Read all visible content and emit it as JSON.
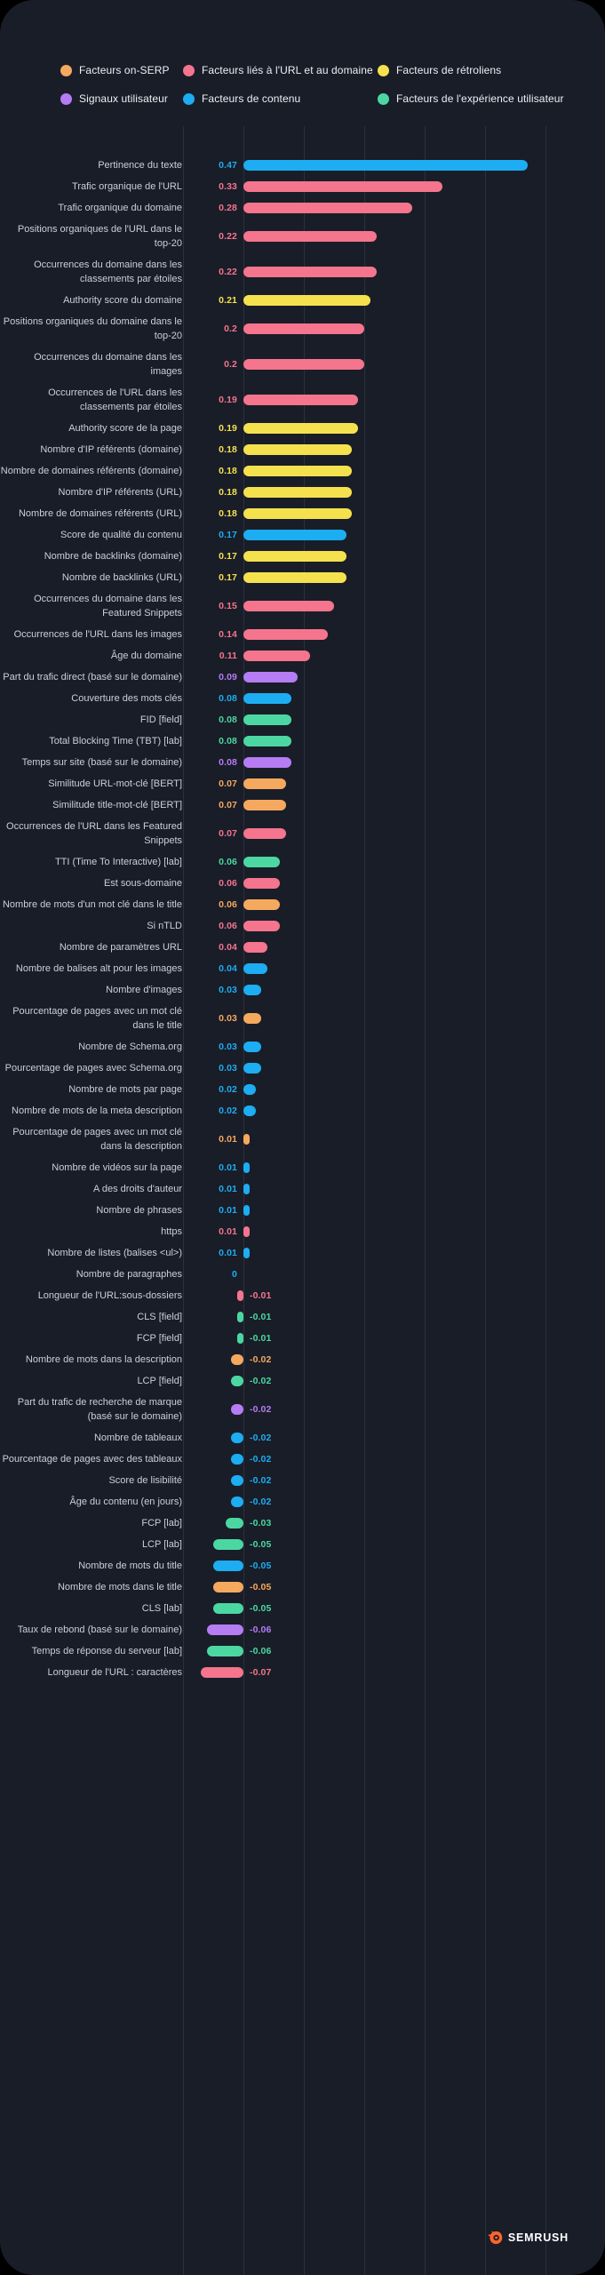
{
  "colors": {
    "serp": "#F5A95F",
    "url": "#F4758D",
    "backlinks": "#F5E14E",
    "user": "#B57CF4",
    "content": "#1CADF2",
    "ux": "#4CD7A2",
    "brand": "#FF642D",
    "background": "#191D28",
    "gridline": "#2B303E",
    "label_text": "#C9CFDC"
  },
  "legend": {
    "items": [
      {
        "key": "serp",
        "label": "Facteurs on-SERP"
      },
      {
        "key": "url",
        "label": "Facteurs liés à l'URL et au domaine"
      },
      {
        "key": "backlinks",
        "label": "Facteurs de rétroliens"
      },
      {
        "key": "user",
        "label": "Signaux utilisateur"
      },
      {
        "key": "content",
        "label": "Facteurs de contenu"
      },
      {
        "key": "ux",
        "label": "Facteurs de l'expérience utilisateur"
      }
    ]
  },
  "chart_data": {
    "type": "bar",
    "orientation": "horizontal",
    "xlim": [
      -0.1,
      0.5
    ],
    "gridlines": [
      -0.1,
      0,
      0.1,
      0.2,
      0.3,
      0.4,
      0.5
    ],
    "grid": true,
    "legend_position": "top",
    "rows": [
      {
        "label": "Pertinence du texte",
        "value": "0.47",
        "cat": "content"
      },
      {
        "label": "Trafic organique de l'URL",
        "value": "0.33",
        "cat": "url"
      },
      {
        "label": "Trafic organique du domaine",
        "value": "0.28",
        "cat": "url"
      },
      {
        "label": "Positions organiques de l'URL dans le top-20",
        "value": "0.22",
        "cat": "url"
      },
      {
        "label": "Occurrences du domaine dans les classements par étoiles",
        "value": "0.22",
        "cat": "url"
      },
      {
        "label": "Authority score du domaine",
        "value": "0.21",
        "cat": "backlinks"
      },
      {
        "label": "Positions organiques du domaine dans le top-20",
        "value": "0.2",
        "cat": "url"
      },
      {
        "label": "Occurrences du domaine dans les images",
        "value": "0.2",
        "cat": "url"
      },
      {
        "label": "Occurrences de l'URL dans les classements par étoiles",
        "value": "0.19",
        "cat": "url"
      },
      {
        "label": "Authority score de la page",
        "value": "0.19",
        "cat": "backlinks"
      },
      {
        "label": "Nombre d'IP référents (domaine)",
        "value": "0.18",
        "cat": "backlinks"
      },
      {
        "label": "Nombre de domaines référents (domaine)",
        "value": "0.18",
        "cat": "backlinks"
      },
      {
        "label": "Nombre d'IP référents (URL)",
        "value": "0.18",
        "cat": "backlinks"
      },
      {
        "label": "Nombre de domaines référents (URL)",
        "value": "0.18",
        "cat": "backlinks"
      },
      {
        "label": "Score de qualité du contenu",
        "value": "0.17",
        "cat": "content"
      },
      {
        "label": "Nombre de backlinks (domaine)",
        "value": "0.17",
        "cat": "backlinks"
      },
      {
        "label": "Nombre de backlinks (URL)",
        "value": "0.17",
        "cat": "backlinks"
      },
      {
        "label": "Occurrences du domaine dans les Featured Snippets",
        "value": "0.15",
        "cat": "url"
      },
      {
        "label": "Occurrences de l'URL dans les images",
        "value": "0.14",
        "cat": "url"
      },
      {
        "label": "Âge du domaine",
        "value": "0.11",
        "cat": "url"
      },
      {
        "label": "Part du trafic direct (basé sur le domaine)",
        "value": "0.09",
        "cat": "user"
      },
      {
        "label": "Couverture des mots clés",
        "value": "0.08",
        "cat": "content"
      },
      {
        "label": "FID [field]",
        "value": "0.08",
        "cat": "ux"
      },
      {
        "label": "Total Blocking Time (TBT) [lab]",
        "value": "0.08",
        "cat": "ux"
      },
      {
        "label": "Temps sur site (basé sur le domaine)",
        "value": "0.08",
        "cat": "user"
      },
      {
        "label": "Similitude URL-mot-clé [BERT]",
        "value": "0.07",
        "cat": "serp"
      },
      {
        "label": "Similitude title-mot-clé [BERT]",
        "value": "0.07",
        "cat": "serp"
      },
      {
        "label": "Occurrences de l'URL dans les Featured Snippets",
        "value": "0.07",
        "cat": "url"
      },
      {
        "label": "TTI (Time To Interactive) [lab]",
        "value": "0.06",
        "cat": "ux"
      },
      {
        "label": "Est sous-domaine",
        "value": "0.06",
        "cat": "url"
      },
      {
        "label": "Nombre de mots d'un mot clé dans le title",
        "value": "0.06",
        "cat": "serp"
      },
      {
        "label": "Si nTLD",
        "value": "0.06",
        "cat": "url"
      },
      {
        "label": "Nombre de paramètres URL",
        "value": "0.04",
        "cat": "url"
      },
      {
        "label": "Nombre de balises alt pour les images",
        "value": "0.04",
        "cat": "content"
      },
      {
        "label": "Nombre d'images",
        "value": "0.03",
        "cat": "content"
      },
      {
        "label": "Pourcentage de pages avec un mot clé dans le title",
        "value": "0.03",
        "cat": "serp"
      },
      {
        "label": "Nombre de Schema.org",
        "value": "0.03",
        "cat": "content"
      },
      {
        "label": "Pourcentage de pages avec Schema.org",
        "value": "0.03",
        "cat": "content"
      },
      {
        "label": "Nombre de mots par page",
        "value": "0.02",
        "cat": "content"
      },
      {
        "label": "Nombre de mots de la meta description",
        "value": "0.02",
        "cat": "content"
      },
      {
        "label": "Pourcentage de pages avec un mot clé dans la description",
        "value": "0.01",
        "cat": "serp"
      },
      {
        "label": "Nombre de vidéos sur la page",
        "value": "0.01",
        "cat": "content"
      },
      {
        "label": "A des droits d'auteur",
        "value": "0.01",
        "cat": "content"
      },
      {
        "label": "Nombre de phrases",
        "value": "0.01",
        "cat": "content"
      },
      {
        "label": "https",
        "value": "0.01",
        "cat": "url"
      },
      {
        "label": "Nombre de listes (balises <ul>)",
        "value": "0.01",
        "cat": "content"
      },
      {
        "label": "Nombre de paragraphes",
        "value": "0",
        "cat": "content"
      },
      {
        "label": "Longueur de l'URL:sous-dossiers",
        "value": "-0.01",
        "cat": "url"
      },
      {
        "label": "CLS [field]",
        "value": "-0.01",
        "cat": "ux"
      },
      {
        "label": "FCP [field]",
        "value": "-0.01",
        "cat": "ux"
      },
      {
        "label": "Nombre de mots dans la description",
        "value": "-0.02",
        "cat": "serp"
      },
      {
        "label": "LCP [field]",
        "value": "-0.02",
        "cat": "ux"
      },
      {
        "label": "Part du trafic de recherche de marque (basé sur le domaine)",
        "value": "-0.02",
        "cat": "user"
      },
      {
        "label": "Nombre de tableaux",
        "value": "-0.02",
        "cat": "content"
      },
      {
        "label": "Pourcentage de pages avec des tableaux",
        "value": "-0.02",
        "cat": "content"
      },
      {
        "label": "Score de lisibilité",
        "value": "-0.02",
        "cat": "content"
      },
      {
        "label": "Âge du contenu (en jours)",
        "value": "-0.02",
        "cat": "content"
      },
      {
        "label": "FCP [lab]",
        "value": "-0.03",
        "cat": "ux"
      },
      {
        "label": "LCP [lab]",
        "value": "-0.05",
        "cat": "ux"
      },
      {
        "label": "Nombre de mots du title",
        "value": "-0.05",
        "cat": "content"
      },
      {
        "label": "Nombre de mots dans le title",
        "value": "-0.05",
        "cat": "serp"
      },
      {
        "label": "CLS [lab]",
        "value": "-0.05",
        "cat": "ux"
      },
      {
        "label": "Taux de rebond (basé sur le domaine)",
        "value": "-0.06",
        "cat": "user"
      },
      {
        "label": "Temps de réponse du serveur [lab]",
        "value": "-0.06",
        "cat": "ux"
      },
      {
        "label": "Longueur de l'URL : caractères",
        "value": "-0.07",
        "cat": "url"
      }
    ]
  },
  "footer": {
    "brand": "SEMRUSH"
  }
}
